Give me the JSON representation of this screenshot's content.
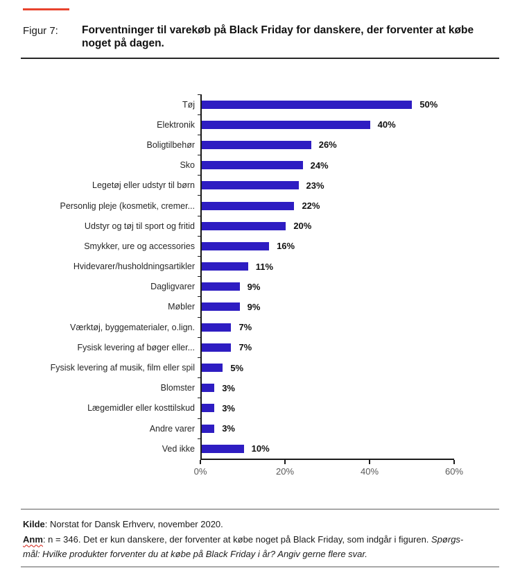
{
  "figure": {
    "label": "Figur 7:",
    "title": "Forventninger til varekøb på Black Friday for danskere, der forventer at købe noget på dagen."
  },
  "chart_data": {
    "type": "bar",
    "orientation": "horizontal",
    "title": "Forventninger til varekøb på Black Friday for danskere, der forventer at købe noget på dagen.",
    "categories": [
      "Tøj",
      "Elektronik",
      "Boligtilbehør",
      "Sko",
      "Legetøj eller udstyr til børn",
      "Personlig pleje (kosmetik, cremer...",
      "Udstyr og tøj til sport og fritid",
      "Smykker, ure og accessories",
      "Hvidevarer/husholdningsartikler",
      "Dagligvarer",
      "Møbler",
      "Værktøj, byggematerialer, o.lign.",
      "Fysisk levering af bøger eller...",
      "Fysisk levering af musik, film eller spil",
      "Blomster",
      "Lægemidler eller kosttilskud",
      "Andre varer",
      "Ved ikke"
    ],
    "values": [
      50,
      40,
      26,
      24,
      23,
      22,
      20,
      16,
      11,
      9,
      9,
      7,
      7,
      5,
      3,
      3,
      3,
      10
    ],
    "value_label_suffix": "%",
    "xlabel": "",
    "ylabel": "",
    "xlim": [
      0,
      60
    ],
    "x_ticks": [
      {
        "label": "0%",
        "value": 0
      },
      {
        "label": "20%",
        "value": 20
      },
      {
        "label": "40%",
        "value": 40
      },
      {
        "label": "60%",
        "value": 60
      }
    ],
    "grid": false,
    "legend": false,
    "bar_color": "#2E1DC2"
  },
  "footer": {
    "kilde_label": "Kilde",
    "kilde_text": ": Norstat for Dansk Erhverv, november 2020.",
    "anm_label": "Anm",
    "anm_text": ": n = 346. Det er kun danskere, der forventer at købe noget på Black Friday, som indgår i figuren. ",
    "anm_italic_line1": "Spørgs-",
    "anm_italic_line2": "mål: Hvilke produkter forventer du at købe på Black Friday i år? Angiv gerne flere svar."
  },
  "colors": {
    "accent_red": "#E8432D",
    "bar_blue": "#2E1DC2",
    "axis_black": "#1a1a1a",
    "tick_label_gray": "#595959"
  }
}
